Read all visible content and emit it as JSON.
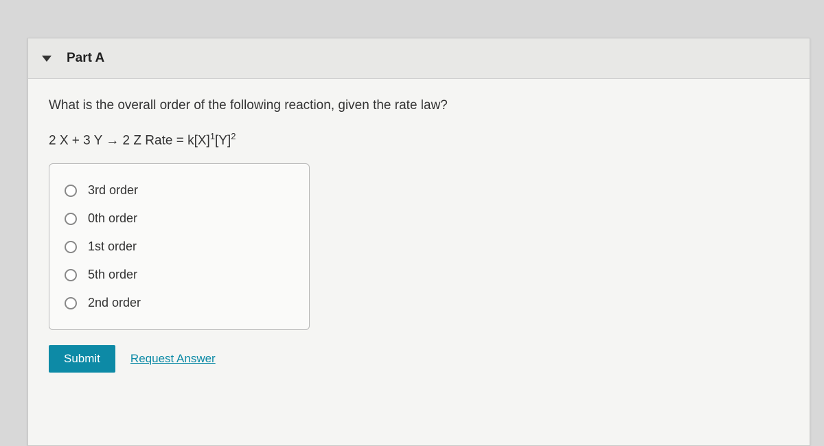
{
  "header": {
    "part_label": "Part A"
  },
  "question": {
    "text": "What is the overall order of the following reaction, given the rate law?",
    "equation_prefix": "2 X + 3 Y → 2 Z Rate = k[X]",
    "sup1": "1",
    "mid": "[Y]",
    "sup2": "2"
  },
  "options": [
    "3rd order",
    "0th order",
    "1st order",
    "5th order",
    "2nd order"
  ],
  "actions": {
    "submit_label": "Submit",
    "request_label": "Request Answer"
  }
}
